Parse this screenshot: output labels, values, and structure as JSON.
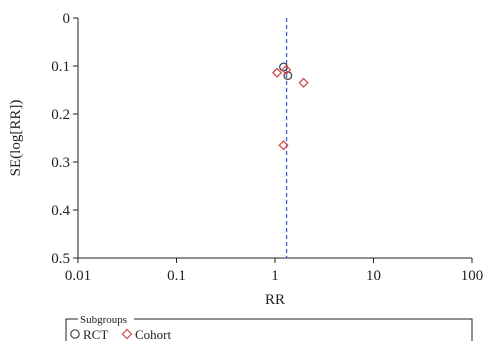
{
  "chart_data": {
    "type": "scatter",
    "title": "",
    "xlabel": "RR",
    "ylabel": "SE(log[RR])",
    "x_scale": "log",
    "xlim": [
      0.01,
      100
    ],
    "ylim": [
      0,
      0.5
    ],
    "y_reversed": true,
    "x_ticks": [
      "0.01",
      "0.1",
      "1",
      "10",
      "100"
    ],
    "y_ticks": [
      "0",
      "0.1",
      "0.2",
      "0.3",
      "0.4",
      "0.5"
    ],
    "reference_line": {
      "x": 1.31,
      "style": "dashed",
      "color": "#3b5fcf"
    },
    "legend": {
      "title": "Subgroups",
      "placement": "bottom",
      "entries": [
        {
          "label": "RCT",
          "marker": "circle",
          "color": "#444444"
        },
        {
          "label": "Cohort",
          "marker": "diamond",
          "color": "#d24a4a"
        }
      ]
    },
    "series": [
      {
        "name": "RCT",
        "marker": "circle",
        "color": "#444444",
        "points": [
          {
            "x": 1.22,
            "y": 0.102
          },
          {
            "x": 1.35,
            "y": 0.12
          }
        ]
      },
      {
        "name": "Cohort",
        "marker": "diamond",
        "color": "#d24a4a",
        "points": [
          {
            "x": 1.05,
            "y": 0.114
          },
          {
            "x": 1.3,
            "y": 0.108
          },
          {
            "x": 1.95,
            "y": 0.135
          },
          {
            "x": 1.22,
            "y": 0.265
          }
        ]
      }
    ]
  }
}
